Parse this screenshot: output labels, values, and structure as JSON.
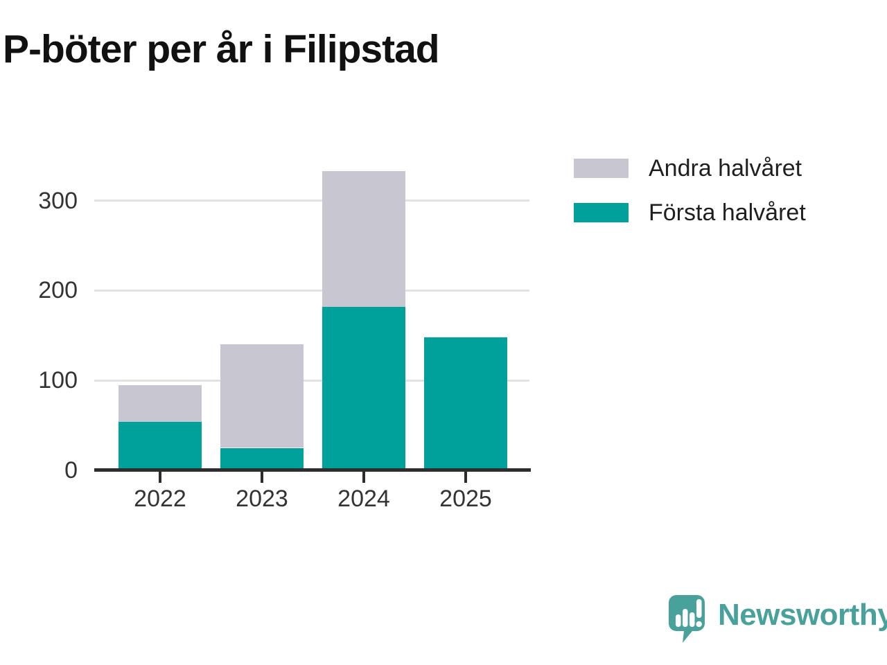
{
  "title": "P-böter per år i Filipstad",
  "legend": {
    "items": [
      {
        "label": "Andra halvåret",
        "color": "#c8c6d0"
      },
      {
        "label": "Första halvåret",
        "color": "#00a19a"
      }
    ]
  },
  "chart_data": {
    "type": "bar",
    "stacked": true,
    "title": "P-böter per år i Filipstad",
    "categories": [
      "2022",
      "2023",
      "2024",
      "2025"
    ],
    "series": [
      {
        "name": "Första halvåret",
        "color": "#00a19a",
        "values": [
          54,
          25,
          182,
          148
        ]
      },
      {
        "name": "Andra halvåret",
        "color": "#c8c6d0",
        "values": [
          41,
          115,
          151,
          0
        ]
      }
    ],
    "totals": [
      95,
      140,
      333,
      148
    ],
    "xlabel": "",
    "ylabel": "",
    "yticks": [
      0,
      100,
      200,
      300
    ],
    "ylim": [
      0,
      340
    ],
    "grid": true,
    "legend_position": "top-right",
    "axis_color": "#2d2d2d",
    "grid_color": "#e3e1e6",
    "tick_label_color": "#333333"
  },
  "branding": {
    "logo_text": "Newsworthy",
    "logo_color": "#48a29b"
  }
}
